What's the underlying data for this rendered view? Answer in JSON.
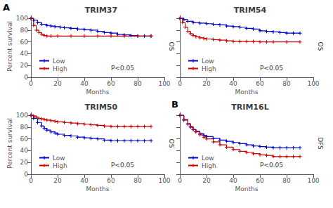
{
  "chart_data": [
    {
      "type": "step",
      "title": "TRIM37",
      "panel_label": "A",
      "right_label": "OS",
      "annotation": "P<0.05",
      "xlabel": "Months",
      "ylabel": "Percent survival",
      "xlim": [
        0,
        100
      ],
      "ylim": [
        0,
        105
      ],
      "xticks": [
        0,
        20,
        40,
        60,
        80,
        100
      ],
      "yticks": [
        0,
        20,
        40,
        60,
        80,
        100
      ],
      "grid": false,
      "legend": "lower left",
      "series": [
        {
          "name": "Low",
          "color": "#0000cc",
          "marker": "+",
          "x": [
            0,
            2,
            5,
            8,
            12,
            15,
            18,
            22,
            25,
            30,
            35,
            40,
            45,
            50,
            55,
            60,
            65,
            70,
            75,
            80,
            85,
            90
          ],
          "values": [
            100,
            97,
            93,
            90,
            88,
            87,
            86,
            85,
            84,
            83,
            82,
            81,
            80,
            78,
            76,
            75,
            73,
            72,
            71,
            70,
            70,
            70
          ]
        },
        {
          "name": "High",
          "color": "#cc0000",
          "marker": "+",
          "x": [
            0,
            2,
            4,
            6,
            8,
            10,
            12,
            15,
            20,
            30,
            40,
            50,
            60,
            70,
            80,
            90
          ],
          "values": [
            100,
            88,
            80,
            76,
            73,
            71,
            70,
            70,
            70,
            70,
            70,
            70,
            70,
            70,
            70,
            70
          ]
        }
      ]
    },
    {
      "type": "step",
      "title": "TRIM54",
      "right_label": "OS",
      "annotation": "P<0.05",
      "xlabel": "Months",
      "tick_labels": "x",
      "xlim": [
        0,
        100
      ],
      "ylim": [
        0,
        105
      ],
      "xticks": [
        0,
        20,
        40,
        60,
        80,
        100
      ],
      "yticks": [
        0,
        20,
        40,
        60,
        80,
        100
      ],
      "grid": false,
      "legend": "lower left",
      "series": [
        {
          "name": "Low",
          "color": "#0000cc",
          "marker": "+",
          "x": [
            0,
            3,
            6,
            10,
            15,
            20,
            25,
            30,
            35,
            40,
            45,
            50,
            55,
            60,
            65,
            70,
            75,
            80,
            85,
            90
          ],
          "values": [
            100,
            98,
            95,
            93,
            92,
            91,
            90,
            89,
            87,
            86,
            85,
            83,
            82,
            79,
            78,
            77,
            76,
            75,
            75,
            75
          ]
        },
        {
          "name": "High",
          "color": "#cc0000",
          "marker": "+",
          "x": [
            0,
            2,
            4,
            6,
            8,
            10,
            12,
            15,
            18,
            20,
            25,
            30,
            35,
            40,
            45,
            50,
            55,
            60,
            65,
            70,
            80,
            90
          ],
          "values": [
            100,
            93,
            85,
            78,
            74,
            71,
            69,
            67,
            66,
            65,
            64,
            63,
            62,
            61,
            61,
            61,
            61,
            60,
            60,
            60,
            60,
            60
          ]
        }
      ]
    },
    {
      "type": "step",
      "title": "TRIM50",
      "right_label": "OS",
      "annotation": "P<0.05",
      "xlabel": "Months",
      "ylabel": "Percent survival",
      "xlim": [
        0,
        100
      ],
      "ylim": [
        0,
        105
      ],
      "xticks": [
        0,
        20,
        40,
        60,
        80,
        100
      ],
      "yticks": [
        0,
        20,
        40,
        60,
        80,
        100
      ],
      "grid": false,
      "legend": "lower left",
      "series": [
        {
          "name": "Low",
          "color": "#0000cc",
          "marker": "+",
          "x": [
            0,
            2,
            5,
            8,
            10,
            12,
            15,
            18,
            20,
            25,
            30,
            35,
            40,
            45,
            50,
            55,
            60,
            65,
            70,
            75,
            80,
            85,
            90
          ],
          "values": [
            100,
            95,
            88,
            82,
            78,
            75,
            72,
            70,
            68,
            66,
            65,
            63,
            62,
            61,
            60,
            58,
            57,
            57,
            57,
            57,
            57,
            57,
            57
          ]
        },
        {
          "name": "High",
          "color": "#cc0000",
          "marker": "+",
          "x": [
            0,
            2,
            4,
            6,
            8,
            10,
            12,
            15,
            18,
            20,
            25,
            30,
            35,
            40,
            45,
            50,
            55,
            60,
            65,
            70,
            75,
            80,
            85,
            90
          ],
          "values": [
            100,
            99,
            97,
            95,
            94,
            93,
            92,
            91,
            90,
            89,
            88,
            87,
            86,
            85,
            84,
            83,
            82,
            81,
            81,
            81,
            81,
            81,
            81,
            81
          ]
        }
      ]
    },
    {
      "type": "step",
      "title": "TRIM16L",
      "panel_label": "B",
      "right_label": "DFS",
      "annotation": "P<0.05",
      "xlabel": "Months",
      "tick_labels": "x",
      "xlim": [
        0,
        100
      ],
      "ylim": [
        0,
        105
      ],
      "xticks": [
        0,
        20,
        40,
        60,
        80,
        100
      ],
      "yticks": [
        0,
        20,
        40,
        60,
        80,
        100
      ],
      "grid": false,
      "legend": "lower left",
      "series": [
        {
          "name": "Low",
          "color": "#0000cc",
          "marker": "+",
          "x": [
            0,
            3,
            6,
            8,
            10,
            12,
            15,
            18,
            20,
            25,
            30,
            35,
            40,
            45,
            50,
            55,
            60,
            65,
            70,
            75,
            80,
            85,
            90
          ],
          "values": [
            100,
            92,
            85,
            80,
            76,
            73,
            69,
            66,
            64,
            61,
            58,
            56,
            54,
            52,
            50,
            48,
            47,
            46,
            45,
            45,
            45,
            45,
            45
          ]
        },
        {
          "name": "High",
          "color": "#cc0000",
          "marker": "+",
          "x": [
            0,
            3,
            6,
            8,
            10,
            12,
            15,
            18,
            20,
            25,
            30,
            35,
            40,
            45,
            50,
            55,
            60,
            65,
            70,
            75,
            80,
            85,
            90
          ],
          "values": [
            100,
            93,
            86,
            81,
            76,
            72,
            67,
            63,
            60,
            55,
            50,
            46,
            42,
            39,
            37,
            35,
            33,
            32,
            30,
            30,
            30,
            30,
            30
          ]
        }
      ]
    }
  ]
}
